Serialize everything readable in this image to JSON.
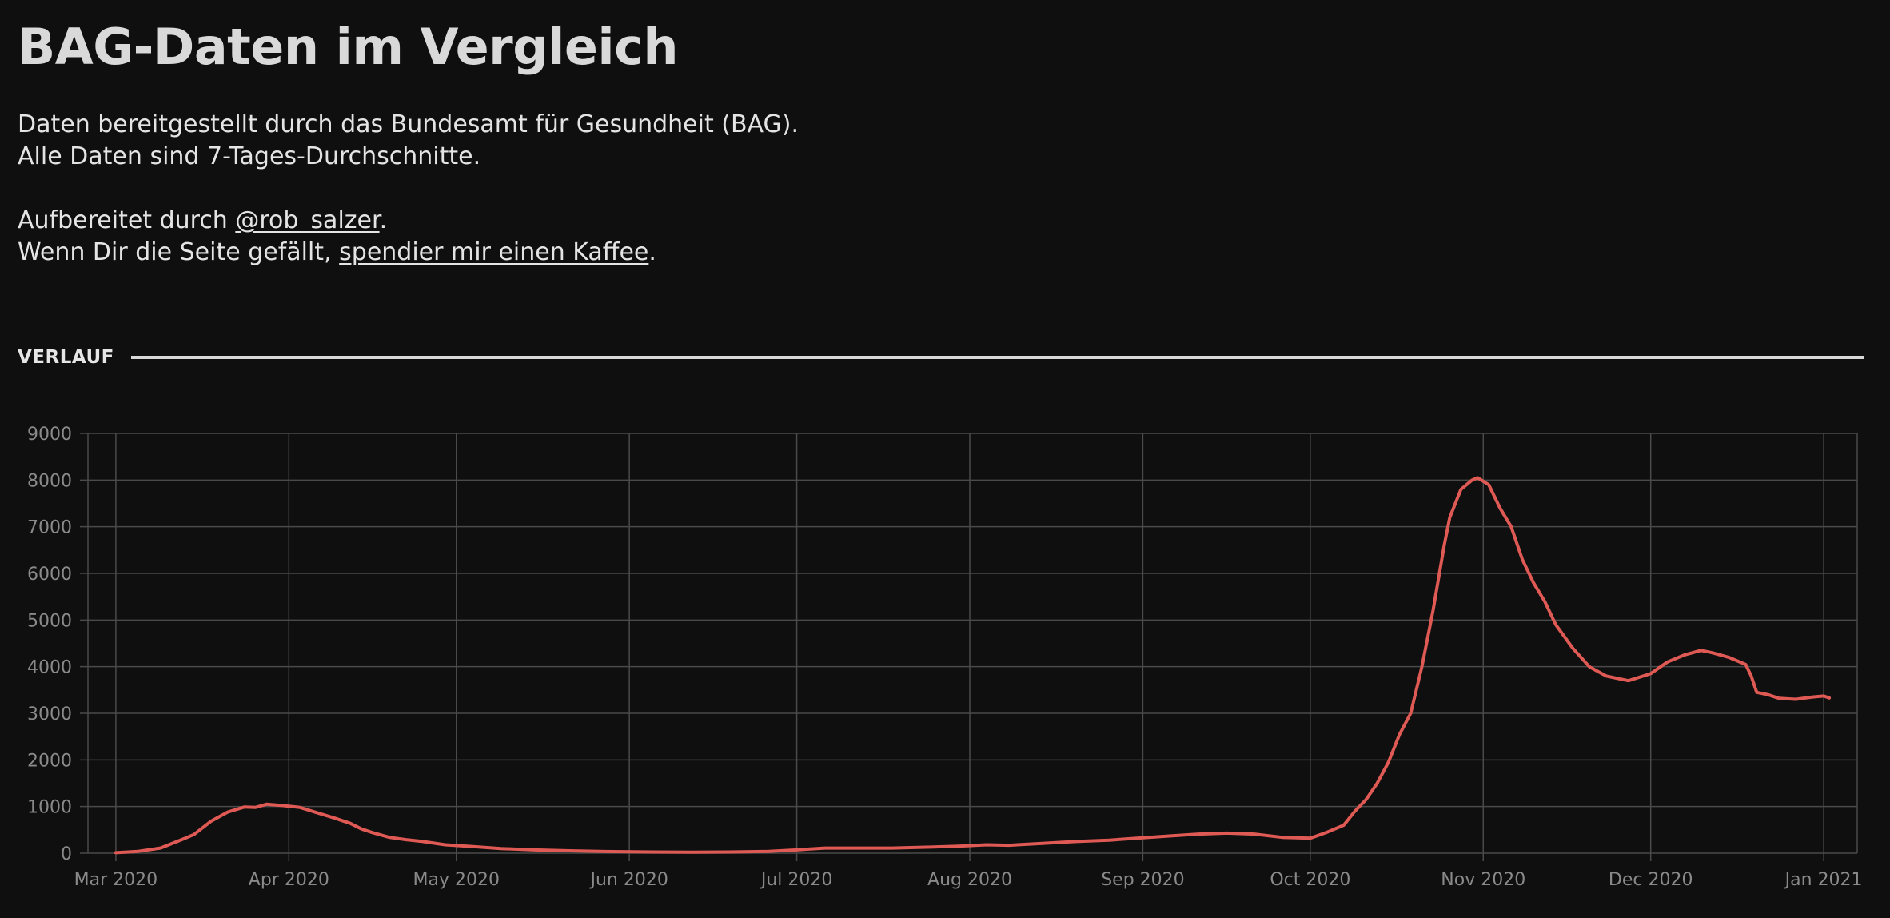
{
  "title": "BAG-Daten im Vergleich",
  "intro": {
    "line1": "Daten bereitgestellt durch das Bundesamt für Gesundheit (BAG).",
    "line2": "Alle Daten sind 7-Tages-Durchschnitte.",
    "line3_prefix": "Aufbereitet durch ",
    "author_link": "@rob_salzer",
    "line3_suffix": ".",
    "line4_prefix": "Wenn Dir die Seite gefällt, ",
    "coffee_link": "spendier mir einen Kaffee",
    "line4_suffix": "."
  },
  "section": {
    "label": "VERLAUF"
  },
  "colors": {
    "background": "#0f0f0f",
    "line": "#e05a55",
    "grid": "#4a4a4a",
    "tick_text": "#8a8a8a"
  },
  "chart_data": {
    "type": "line",
    "title": "",
    "xlabel": "",
    "ylabel": "",
    "ylim": [
      0,
      9000
    ],
    "xlim": [
      "2020-02-25",
      "2021-01-07"
    ],
    "yticks": [
      0,
      1000,
      2000,
      3000,
      4000,
      5000,
      6000,
      7000,
      8000,
      9000
    ],
    "xticks": [
      {
        "date": "2020-03-01",
        "label": "Mar 2020"
      },
      {
        "date": "2020-04-01",
        "label": "Apr 2020"
      },
      {
        "date": "2020-05-01",
        "label": "May 2020"
      },
      {
        "date": "2020-06-01",
        "label": "Jun 2020"
      },
      {
        "date": "2020-07-01",
        "label": "Jul 2020"
      },
      {
        "date": "2020-08-01",
        "label": "Aug 2020"
      },
      {
        "date": "2020-09-01",
        "label": "Sep 2020"
      },
      {
        "date": "2020-10-01",
        "label": "Oct 2020"
      },
      {
        "date": "2020-11-01",
        "label": "Nov 2020"
      },
      {
        "date": "2020-12-01",
        "label": "Dec 2020"
      },
      {
        "date": "2021-01-01",
        "label": "Jan 2021"
      }
    ],
    "grid": true,
    "legend": "none",
    "series": [
      {
        "points": [
          [
            "2020-03-01",
            10
          ],
          [
            "2020-03-05",
            40
          ],
          [
            "2020-03-09",
            110
          ],
          [
            "2020-03-13",
            300
          ],
          [
            "2020-03-15",
            400
          ],
          [
            "2020-03-18",
            680
          ],
          [
            "2020-03-21",
            880
          ],
          [
            "2020-03-24",
            990
          ],
          [
            "2020-03-26",
            980
          ],
          [
            "2020-03-28",
            1050
          ],
          [
            "2020-03-31",
            1020
          ],
          [
            "2020-04-03",
            980
          ],
          [
            "2020-04-06",
            870
          ],
          [
            "2020-04-09",
            760
          ],
          [
            "2020-04-12",
            640
          ],
          [
            "2020-04-14",
            520
          ],
          [
            "2020-04-16",
            440
          ],
          [
            "2020-04-19",
            340
          ],
          [
            "2020-04-22",
            290
          ],
          [
            "2020-04-25",
            250
          ],
          [
            "2020-04-29",
            180
          ],
          [
            "2020-05-04",
            140
          ],
          [
            "2020-05-09",
            100
          ],
          [
            "2020-05-15",
            70
          ],
          [
            "2020-05-22",
            50
          ],
          [
            "2020-05-29",
            35
          ],
          [
            "2020-06-05",
            25
          ],
          [
            "2020-06-12",
            20
          ],
          [
            "2020-06-19",
            25
          ],
          [
            "2020-06-26",
            40
          ],
          [
            "2020-07-01",
            70
          ],
          [
            "2020-07-06",
            110
          ],
          [
            "2020-07-12",
            110
          ],
          [
            "2020-07-18",
            110
          ],
          [
            "2020-07-25",
            130
          ],
          [
            "2020-07-30",
            150
          ],
          [
            "2020-08-04",
            180
          ],
          [
            "2020-08-08",
            170
          ],
          [
            "2020-08-14",
            210
          ],
          [
            "2020-08-20",
            250
          ],
          [
            "2020-08-26",
            280
          ],
          [
            "2020-09-01",
            330
          ],
          [
            "2020-09-06",
            370
          ],
          [
            "2020-09-11",
            410
          ],
          [
            "2020-09-16",
            430
          ],
          [
            "2020-09-21",
            410
          ],
          [
            "2020-09-26",
            340
          ],
          [
            "2020-10-01",
            320
          ],
          [
            "2020-10-04",
            450
          ],
          [
            "2020-10-07",
            600
          ],
          [
            "2020-10-09",
            900
          ],
          [
            "2020-10-11",
            1150
          ],
          [
            "2020-10-13",
            1500
          ],
          [
            "2020-10-15",
            1950
          ],
          [
            "2020-10-17",
            2550
          ],
          [
            "2020-10-19",
            3000
          ],
          [
            "2020-10-21",
            4000
          ],
          [
            "2020-10-23",
            5200
          ],
          [
            "2020-10-25",
            6600
          ],
          [
            "2020-10-26",
            7200
          ],
          [
            "2020-10-28",
            7800
          ],
          [
            "2020-10-30",
            8000
          ],
          [
            "2020-10-31",
            8050
          ],
          [
            "2020-11-02",
            7900
          ],
          [
            "2020-11-04",
            7400
          ],
          [
            "2020-11-06",
            7000
          ],
          [
            "2020-11-08",
            6300
          ],
          [
            "2020-11-10",
            5800
          ],
          [
            "2020-11-12",
            5400
          ],
          [
            "2020-11-14",
            4900
          ],
          [
            "2020-11-17",
            4400
          ],
          [
            "2020-11-20",
            4000
          ],
          [
            "2020-11-23",
            3800
          ],
          [
            "2020-11-27",
            3700
          ],
          [
            "2020-12-01",
            3850
          ],
          [
            "2020-12-04",
            4100
          ],
          [
            "2020-12-07",
            4250
          ],
          [
            "2020-12-10",
            4350
          ],
          [
            "2020-12-12",
            4300
          ],
          [
            "2020-12-15",
            4200
          ],
          [
            "2020-12-18",
            4050
          ],
          [
            "2020-12-19",
            3800
          ],
          [
            "2020-12-20",
            3450
          ],
          [
            "2020-12-22",
            3400
          ],
          [
            "2020-12-24",
            3320
          ],
          [
            "2020-12-27",
            3300
          ],
          [
            "2020-12-30",
            3350
          ],
          [
            "2021-01-01",
            3370
          ],
          [
            "2021-01-02",
            3330
          ]
        ]
      }
    ]
  }
}
